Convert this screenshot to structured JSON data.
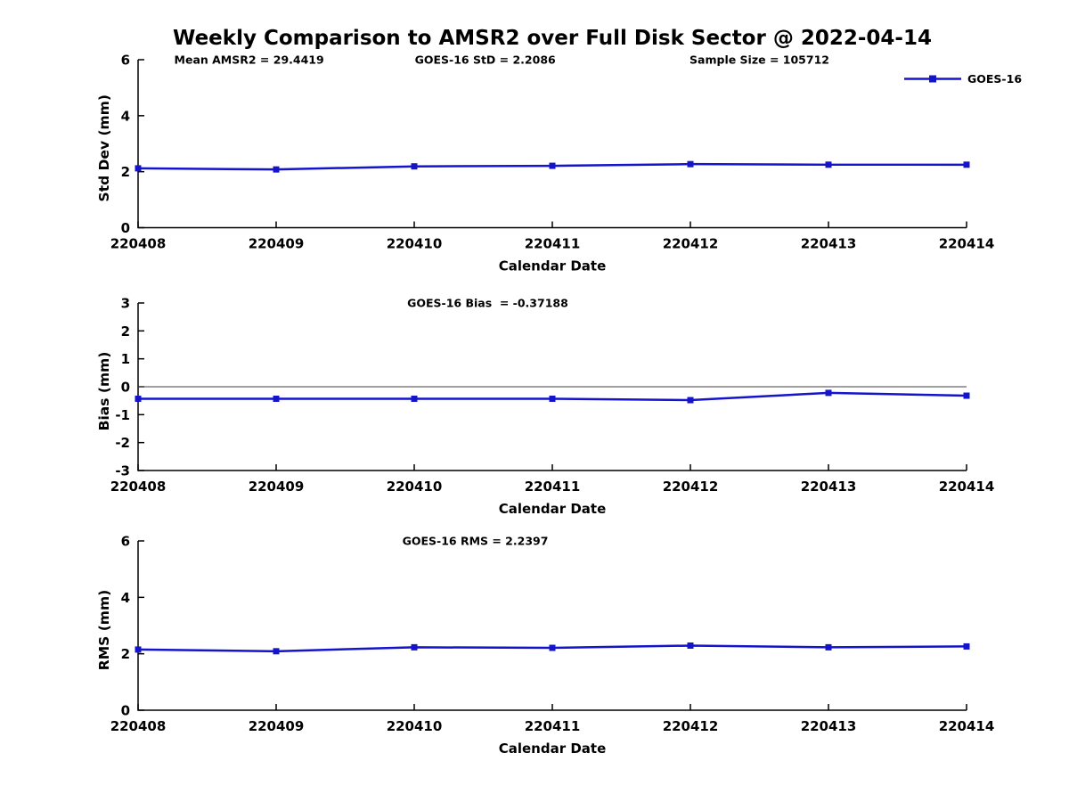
{
  "title": "Weekly Comparison to AMSR2 over Full Disk Sector @ 2022-04-14",
  "legend": {
    "label": "GOES-16"
  },
  "colors": {
    "series": "#1414CC",
    "axis": "#000000",
    "zero_line": "#404040",
    "text": "#000000",
    "background": "#FFFFFF"
  },
  "chart_data": [
    {
      "type": "line",
      "name": "std-dev",
      "ylabel": "Std Dev (mm)",
      "xlabel": "Calendar Date",
      "categories": [
        "220408",
        "220409",
        "220410",
        "220411",
        "220412",
        "220413",
        "220414"
      ],
      "series": [
        {
          "name": "GOES-16",
          "values": [
            2.12,
            2.08,
            2.19,
            2.21,
            2.27,
            2.25,
            2.25
          ]
        }
      ],
      "ylim": [
        0,
        6
      ],
      "yticks": [
        0,
        2,
        4,
        6
      ],
      "annotations": [
        "Mean AMSR2 = 29.4419",
        "GOES-16 StD = 2.2086",
        "Sample Size = 105712"
      ],
      "grid": false,
      "legend_position": "top-right",
      "zero_line": false
    },
    {
      "type": "line",
      "name": "bias",
      "ylabel": "Bias (mm)",
      "xlabel": "Calendar Date",
      "categories": [
        "220408",
        "220409",
        "220410",
        "220411",
        "220412",
        "220413",
        "220414"
      ],
      "series": [
        {
          "name": "GOES-16",
          "values": [
            -0.43,
            -0.43,
            -0.43,
            -0.43,
            -0.48,
            -0.22,
            -0.32
          ]
        }
      ],
      "ylim": [
        -3,
        3
      ],
      "yticks": [
        -3,
        -2,
        -1,
        0,
        1,
        2,
        3
      ],
      "annotations": [
        "GOES-16 Bias  = -0.37188"
      ],
      "grid": false,
      "legend_position": "none",
      "zero_line": true
    },
    {
      "type": "line",
      "name": "rms",
      "ylabel": "RMS (mm)",
      "xlabel": "Calendar Date",
      "categories": [
        "220408",
        "220409",
        "220410",
        "220411",
        "220412",
        "220413",
        "220414"
      ],
      "series": [
        {
          "name": "GOES-16",
          "values": [
            2.15,
            2.09,
            2.23,
            2.21,
            2.29,
            2.23,
            2.26
          ]
        }
      ],
      "ylim": [
        0,
        6
      ],
      "yticks": [
        0,
        2,
        4,
        6
      ],
      "annotations": [
        "GOES-16 RMS = 2.2397"
      ],
      "grid": false,
      "legend_position": "none",
      "zero_line": false
    }
  ]
}
